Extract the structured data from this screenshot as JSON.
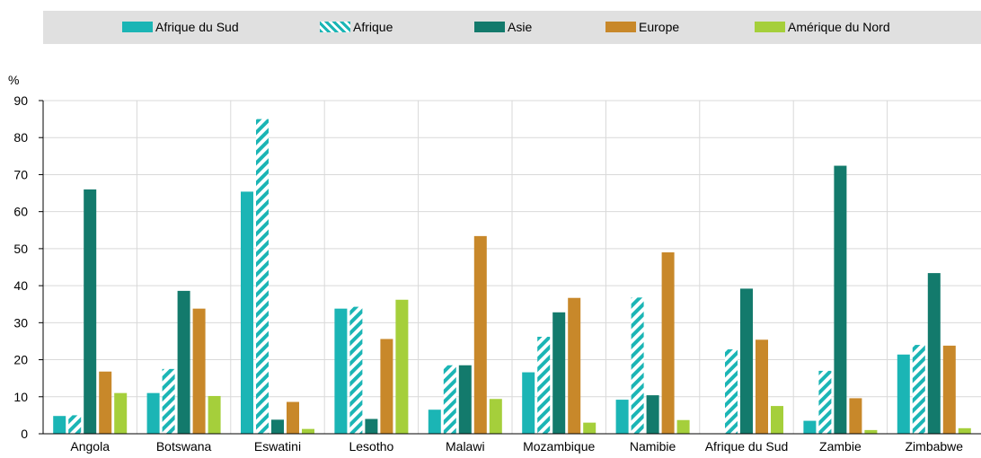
{
  "chart_data": {
    "type": "bar",
    "ylabel": "%",
    "ylim": [
      0,
      90
    ],
    "yticks": [
      "0",
      "10",
      "20",
      "30",
      "40",
      "50",
      "60",
      "70",
      "80",
      "90"
    ],
    "categories": [
      "Angola",
      "Botswana",
      "Eswatini",
      "Lesotho",
      "Malawi",
      "Mozambique",
      "Namibie",
      "Afrique du Sud",
      "Zambie",
      "Zimbabwe"
    ],
    "series": [
      {
        "name": "Afrique du Sud",
        "color": "#1bb5b5",
        "pattern": "solid",
        "values": [
          4.8,
          11,
          65.4,
          33.8,
          6.5,
          16.6,
          9.2,
          0,
          3.5,
          21.4
        ]
      },
      {
        "name": "Afrique",
        "color": "#1bb5b5",
        "pattern": "hatch",
        "values": [
          5,
          17.5,
          85,
          34.3,
          18.5,
          26.2,
          36.8,
          22.8,
          17,
          24
        ]
      },
      {
        "name": "Asie",
        "color": "#137a6c",
        "pattern": "solid",
        "values": [
          66,
          38.6,
          3.8,
          4,
          18.5,
          32.8,
          10.4,
          39.2,
          72.4,
          43.4
        ]
      },
      {
        "name": "Europe",
        "color": "#c8882a",
        "pattern": "solid",
        "values": [
          16.8,
          33.8,
          8.6,
          25.6,
          53.4,
          36.7,
          49,
          25.4,
          9.6,
          23.8
        ]
      },
      {
        "name": "Amérique du Nord",
        "color": "#a5cf3b",
        "pattern": "solid",
        "values": [
          11,
          10.2,
          1.3,
          36.2,
          9.4,
          3,
          3.7,
          7.5,
          1,
          1.5
        ]
      }
    ]
  }
}
